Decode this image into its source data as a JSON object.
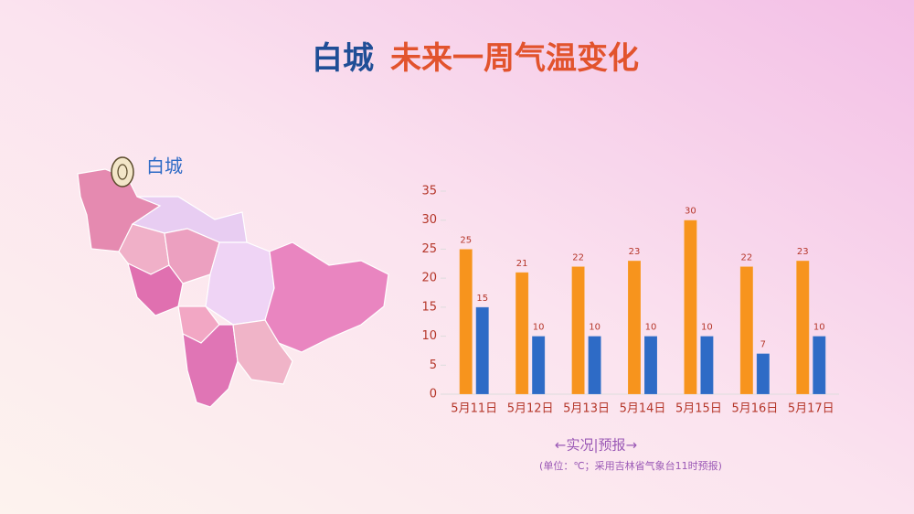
{
  "header": {
    "city": "白城",
    "title": "未来一周气温变化"
  },
  "map": {
    "label": "白城"
  },
  "chart_data": {
    "type": "bar",
    "categories": [
      "5月11日",
      "5月12日",
      "5月13日",
      "5月14日",
      "5月15日",
      "5月16日",
      "5月17日"
    ],
    "series": [
      {
        "color": "#f7941d",
        "values": [
          25,
          21,
          22,
          23,
          30,
          22,
          23
        ]
      },
      {
        "color": "#2e6bc6",
        "values": [
          15,
          10,
          10,
          10,
          10,
          7,
          10
        ]
      }
    ],
    "ylim": [
      0,
      35
    ],
    "yticks": [
      0,
      5,
      10,
      15,
      20,
      25,
      30,
      35
    ],
    "grid": false
  },
  "footer": {
    "arrow_note": "←实况|预报→",
    "unit_note": "(单位：℃；采用吉林省气象台11时预报)"
  }
}
